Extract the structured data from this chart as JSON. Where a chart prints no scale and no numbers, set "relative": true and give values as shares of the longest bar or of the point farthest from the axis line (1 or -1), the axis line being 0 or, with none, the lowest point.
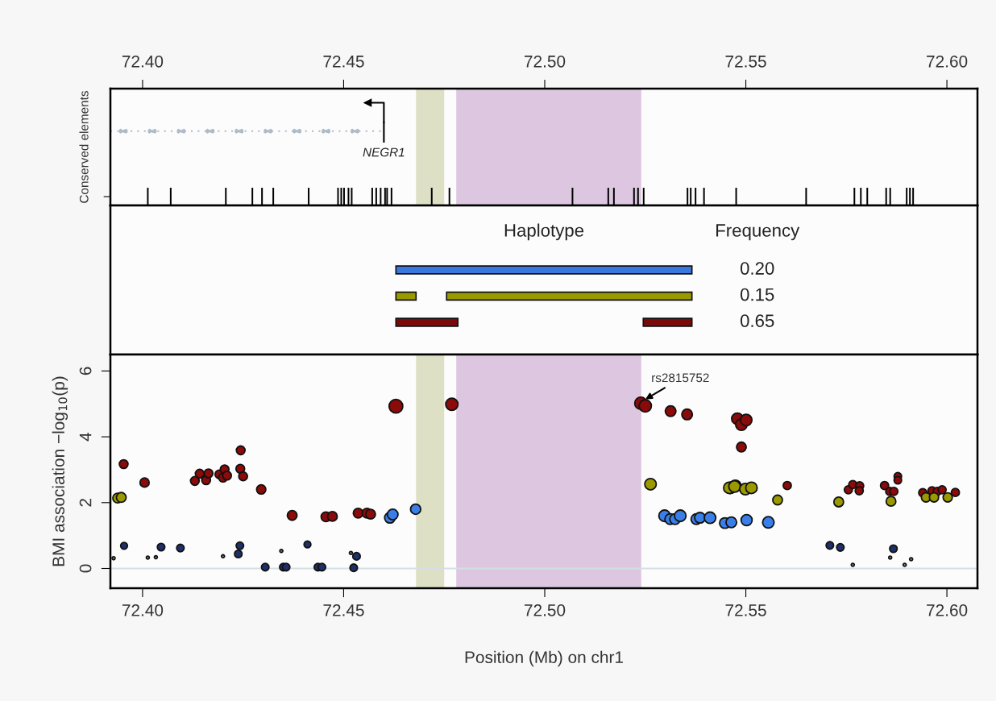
{
  "chart_data": [
    {
      "type": "bar",
      "ylabel": "Conserved elements",
      "relative": true,
      "color": "#000000",
      "x": [
        72.4013,
        72.407,
        72.4207,
        72.4273,
        72.4297,
        72.4325,
        72.4413,
        72.4486,
        72.4494,
        72.4501,
        72.4512,
        72.452,
        72.4571,
        72.4581,
        72.4592,
        72.4603,
        72.4608,
        72.4619,
        72.4719,
        72.4763,
        72.5069,
        72.5158,
        72.5172,
        72.5222,
        72.5232,
        72.5246,
        72.5355,
        72.5363,
        72.5375,
        72.5396,
        72.5476,
        72.565,
        72.577,
        72.5786,
        72.5802,
        72.5849,
        72.5859,
        72.59,
        72.5908,
        72.5916
      ],
      "values": [
        1,
        1,
        1,
        1,
        1,
        1,
        1,
        1,
        1,
        1,
        1,
        1,
        1,
        1,
        1,
        1,
        1,
        1,
        1,
        1,
        1,
        1,
        1,
        1,
        1,
        1,
        1,
        1,
        1,
        1,
        1,
        1,
        1,
        1,
        1,
        1,
        1,
        1,
        1,
        1
      ],
      "xlim": [
        72.392,
        72.6076
      ],
      "xticks": [
        {
          "value": 72.4,
          "label": "72.40"
        },
        {
          "value": 72.45,
          "label": "72.45"
        },
        {
          "value": 72.5,
          "label": "72.50"
        },
        {
          "value": 72.55,
          "label": "72.55"
        },
        {
          "value": 72.6,
          "label": "72.60"
        }
      ],
      "tick_labels": "x",
      "bands": [
        {
          "axis": "x",
          "from": 72.468,
          "to": 72.475,
          "color": "#dde0c4"
        },
        {
          "axis": "x",
          "from": 72.478,
          "to": 72.524,
          "color": "#dcc6e0"
        }
      ],
      "ref_lines": [
        {
          "axis": "x",
          "value": 72.46,
          "label": "NEGR1"
        }
      ]
    },
    {
      "type": "bar",
      "orientation": "horizontal",
      "title": "Haplotype",
      "categories": [
        "0.20",
        "0.15",
        "0.65"
      ],
      "series": [
        {
          "color": "#3a78e0",
          "base": [
            72.463,
            null,
            null
          ],
          "values": [
            0.0736,
            null,
            null
          ]
        },
        {
          "color": "#9a9a00",
          "base": [
            null,
            72.463,
            null
          ],
          "values": [
            null,
            0.005,
            null
          ]
        },
        {
          "color": "#9a9a00",
          "base": [
            null,
            72.4756,
            null
          ],
          "values": [
            null,
            0.061,
            null
          ]
        },
        {
          "color": "#7a0a0a",
          "base": [
            null,
            null,
            72.463
          ],
          "values": [
            null,
            null,
            0.0154
          ]
        },
        {
          "color": "#7a0a0a",
          "base": [
            null,
            null,
            72.5245
          ],
          "values": [
            null,
            null,
            0.0121
          ]
        }
      ],
      "xlim": [
        72.392,
        72.6076
      ],
      "tick_labels": "y",
      "annotations": [
        "Frequency"
      ]
    },
    {
      "type": "bubble",
      "xlabel": "Position (Mb) on chr1",
      "ylabel": "BMI association −log$_{10}$(p)",
      "series": [
        {
          "color": "#8b0a0a",
          "x": [
            72.3953,
            72.4005,
            72.413,
            72.4142,
            72.4158,
            72.4164,
            72.4191,
            72.42,
            72.4204,
            72.421,
            72.4244,
            72.4243,
            72.425,
            72.4295,
            72.4372,
            72.4456,
            72.4472,
            72.4536,
            72.4558,
            72.4567,
            72.463,
            72.4769,
            72.5239,
            72.525,
            72.5313,
            72.5354,
            72.5479,
            72.5489,
            72.5501,
            72.5489,
            72.5603,
            72.5755,
            72.5766,
            72.5783,
            72.5782,
            72.5845,
            72.5858,
            72.5868,
            72.5878,
            72.5878,
            72.594,
            72.5963,
            72.5976,
            72.5988,
            72.6021
          ],
          "values": [
            3.17,
            2.61,
            2.66,
            2.88,
            2.68,
            2.89,
            2.86,
            2.76,
            3.01,
            2.82,
            3.59,
            3.03,
            2.8,
            2.4,
            1.61,
            1.57,
            1.58,
            1.68,
            1.68,
            1.65,
            4.93,
            4.99,
            5.02,
            4.94,
            4.78,
            4.68,
            4.55,
            4.37,
            4.51,
            3.69,
            2.52,
            2.39,
            2.55,
            2.51,
            2.36,
            2.52,
            2.34,
            2.34,
            2.8,
            2.68,
            2.3,
            2.36,
            2.34,
            2.39,
            2.31
          ],
          "sizes": [
            0.4,
            0.45,
            0.4,
            0.4,
            0.4,
            0.4,
            0.4,
            0.4,
            0.4,
            0.4,
            0.4,
            0.4,
            0.4,
            0.45,
            0.5,
            0.5,
            0.5,
            0.5,
            0.5,
            0.5,
            1,
            0.8,
            0.8,
            0.8,
            0.6,
            0.6,
            0.7,
            0.7,
            0.7,
            0.5,
            0.35,
            0.35,
            0.35,
            0.35,
            0.35,
            0.35,
            0.35,
            0.35,
            0.3,
            0.3,
            0.35,
            0.35,
            0.35,
            0.35,
            0.35
          ]
        },
        {
          "color": "#9a9a00",
          "x": [
            72.3938,
            72.3947,
            72.5263,
            72.5462,
            72.5474,
            72.5459,
            72.5472,
            72.5499,
            72.5514,
            72.5579,
            72.5731,
            72.5861,
            72.5948,
            72.5968,
            72.6002
          ],
          "values": [
            2.14,
            2.16,
            2.56,
            2.45,
            2.51,
            2.45,
            2.49,
            2.41,
            2.45,
            2.08,
            2.02,
            2.04,
            2.16,
            2.16,
            2.16
          ],
          "sizes": [
            0.5,
            0.5,
            0.7,
            0.7,
            0.7,
            0.7,
            0.7,
            0.7,
            0.7,
            0.5,
            0.5,
            0.5,
            0.45,
            0.45,
            0.45
          ]
        },
        {
          "color": "#3a7fe8",
          "x": [
            72.4615,
            72.4622,
            72.4679,
            72.5298,
            72.5312,
            72.5324,
            72.5337,
            72.5377,
            72.5386,
            72.5411,
            72.5448,
            72.5464,
            72.5502,
            72.5556
          ],
          "values": [
            1.54,
            1.64,
            1.8,
            1.6,
            1.5,
            1.5,
            1.6,
            1.5,
            1.54,
            1.54,
            1.38,
            1.4,
            1.47,
            1.4
          ],
          "sizes": [
            0.6,
            0.6,
            0.55,
            0.7,
            0.6,
            0.6,
            0.7,
            0.6,
            0.6,
            0.7,
            0.6,
            0.6,
            0.65,
            0.7
          ]
        },
        {
          "color": "#1f2f6a",
          "x": [
            72.3954,
            72.4046,
            72.4094,
            72.4242,
            72.4238,
            72.441,
            72.4532,
            72.4305,
            72.435,
            72.4357,
            72.4436,
            72.4446,
            72.4525,
            72.5709,
            72.5735,
            72.5867
          ],
          "values": [
            0.69,
            0.65,
            0.62,
            0.69,
            0.44,
            0.73,
            0.37,
            0.04,
            0.04,
            0.04,
            0.04,
            0.04,
            0.02,
            0.7,
            0.64,
            0.6
          ],
          "sizes": [
            0.25,
            0.3,
            0.3,
            0.3,
            0.3,
            0.25,
            0.3,
            0.3,
            0.3,
            0.3,
            0.3,
            0.3,
            0.3,
            0.3,
            0.3,
            0.3
          ]
        },
        {
          "color": "#8a8a8a",
          "x": [
            72.3928,
            72.4013,
            72.4033,
            72.42,
            72.4345,
            72.4518,
            72.5766,
            72.5859,
            72.5895,
            72.5911
          ],
          "values": [
            0.31,
            0.33,
            0.34,
            0.37,
            0.53,
            0.47,
            0.11,
            0.33,
            0.11,
            0.28
          ],
          "sizes": [
            0.05,
            0.05,
            0.05,
            0.05,
            0.05,
            0.05,
            0.05,
            0.05,
            0.05,
            0.05
          ]
        }
      ],
      "xlim": [
        72.392,
        72.6076
      ],
      "ylim": [
        -0.6,
        6.5
      ],
      "xticks": [
        {
          "value": 72.4,
          "label": "72.40"
        },
        {
          "value": 72.45,
          "label": "72.45"
        },
        {
          "value": 72.5,
          "label": "72.50"
        },
        {
          "value": 72.55,
          "label": "72.55"
        },
        {
          "value": 72.6,
          "label": "72.60"
        }
      ],
      "yticks": [
        0,
        2,
        4,
        6
      ],
      "bands": [
        {
          "axis": "x",
          "from": 72.468,
          "to": 72.475,
          "color": "#dde0c4"
        },
        {
          "axis": "x",
          "from": 72.478,
          "to": 72.524,
          "color": "#dcc6e0"
        }
      ],
      "ref_lines": [
        {
          "axis": "y",
          "value": 0,
          "color": "#d3dfe3"
        }
      ],
      "annotations": [
        {
          "text": "rs2815752",
          "x": 72.5239,
          "y": 5.02
        }
      ]
    }
  ]
}
